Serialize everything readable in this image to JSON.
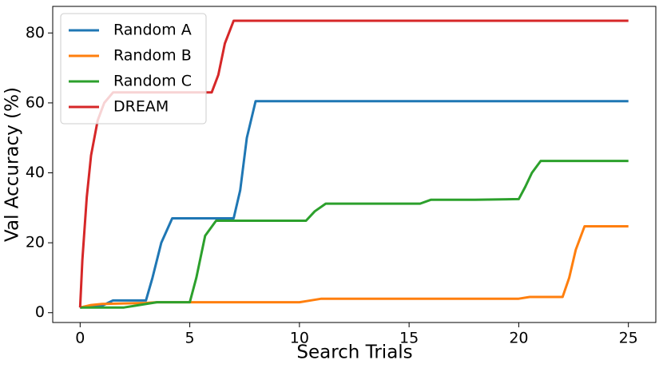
{
  "chart_data": {
    "type": "line",
    "xlabel": "Search Trials",
    "ylabel": "Val Accuracy (%)",
    "xlim": [
      -1.25,
      26.25
    ],
    "ylim": [
      -2.8,
      87.6
    ],
    "xticks": [
      0,
      5,
      10,
      15,
      20,
      25
    ],
    "yticks": [
      0,
      20,
      40,
      60,
      80
    ],
    "legend": "upper left",
    "series": [
      {
        "name": "Random A",
        "color": "#1f77b4",
        "x": [
          0,
          1,
          1.5,
          3,
          3.3,
          3.7,
          4.2,
          7,
          7.3,
          7.6,
          8,
          25
        ],
        "values": [
          1.5,
          2,
          3.5,
          3.5,
          10,
          20,
          27,
          27,
          35,
          50,
          60.5,
          60.5
        ]
      },
      {
        "name": "Random B",
        "color": "#ff7f0e",
        "x": [
          0,
          0.5,
          1,
          3,
          3.5,
          10,
          10.3,
          11,
          20,
          20.5,
          22,
          22.3,
          22.6,
          23,
          25
        ],
        "values": [
          1.5,
          2.2,
          2.5,
          2.8,
          3,
          3,
          3.3,
          4,
          4,
          4.5,
          4.5,
          10,
          18,
          24.7,
          24.7
        ]
      },
      {
        "name": "Random C",
        "color": "#2ca02c",
        "x": [
          0,
          2,
          2.5,
          3.5,
          5,
          5.3,
          5.7,
          6.2,
          10.3,
          10.7,
          11.2,
          15.5,
          16,
          18,
          20,
          20.3,
          20.6,
          21,
          25
        ],
        "values": [
          1.5,
          1.5,
          2,
          3,
          3,
          10,
          22,
          26.3,
          26.3,
          29,
          31.2,
          31.2,
          32.3,
          32.3,
          32.5,
          36,
          40,
          43.4,
          43.4
        ]
      },
      {
        "name": "DREAM",
        "color": "#d62728",
        "x": [
          0,
          0.1,
          0.3,
          0.5,
          0.8,
          1.1,
          1.5,
          6,
          6.3,
          6.6,
          7,
          25
        ],
        "values": [
          1.5,
          15,
          33,
          45,
          55,
          60,
          63,
          63,
          68,
          77,
          83.5,
          83.5
        ]
      }
    ]
  }
}
